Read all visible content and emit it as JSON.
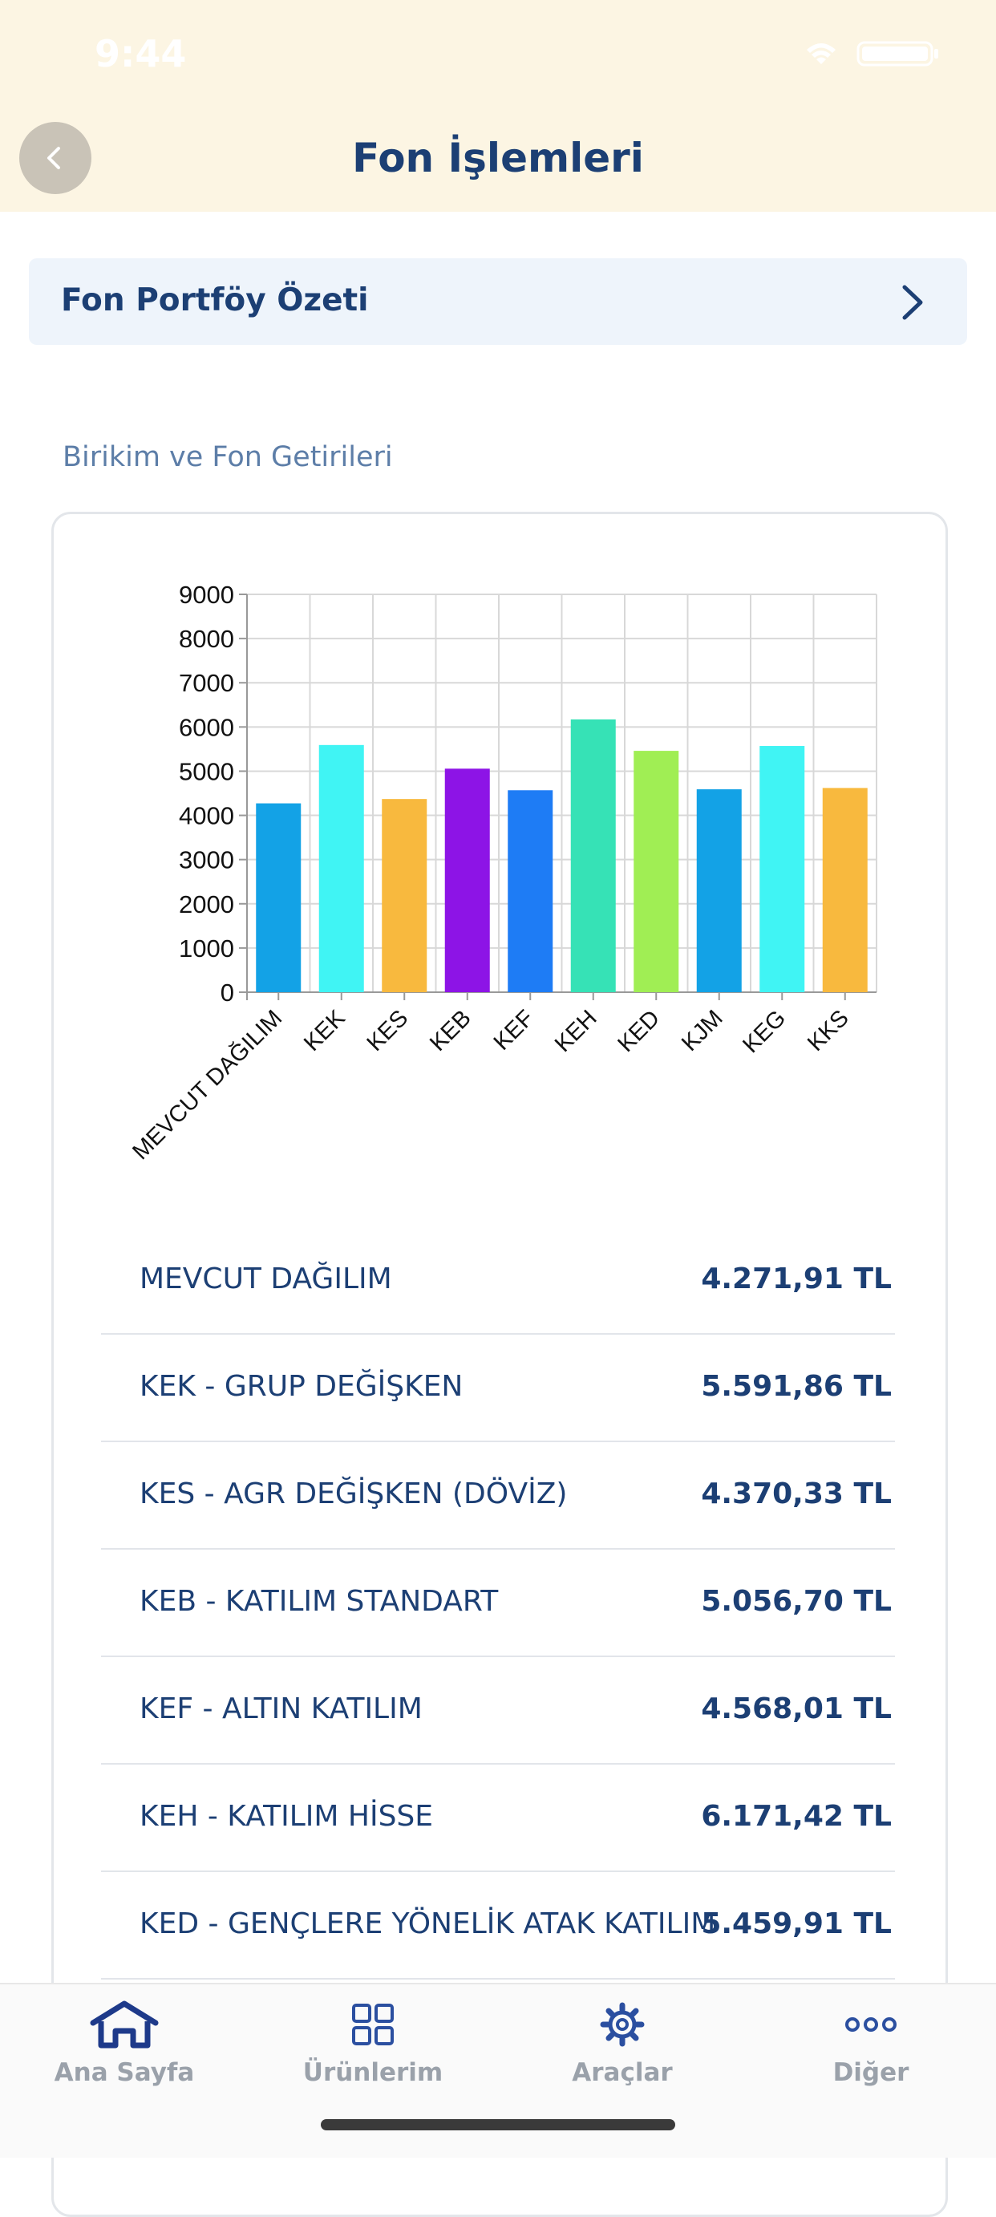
{
  "status_bar": {
    "time": "9:44"
  },
  "header": {
    "title": "Fon İşlemleri"
  },
  "summary": {
    "label": "Fon Portföy Özeti"
  },
  "section": {
    "title": "Birikim ve Fon Getirileri"
  },
  "chart_data": {
    "type": "bar",
    "categories": [
      "MEVCUT DAĞILIM",
      "KEK",
      "KES",
      "KEB",
      "KEF",
      "KEH",
      "KED",
      "KJM",
      "KEG",
      "KKS"
    ],
    "values": [
      4271.91,
      5591.86,
      4370.33,
      5056.7,
      4568.01,
      6171.42,
      5459.91,
      4590,
      5570,
      4620
    ],
    "colors": [
      "#13a2e6",
      "#40f4f4",
      "#f8b93e",
      "#8d14e6",
      "#1e7cf5",
      "#36e2b6",
      "#a0ee54",
      "#13a2e6",
      "#40f4f4",
      "#f8b93e"
    ],
    "yticks": [
      "0",
      "1000",
      "2000",
      "3000",
      "4000",
      "5000",
      "6000",
      "7000",
      "8000",
      "9000"
    ],
    "ylim": [
      0,
      9000
    ],
    "grid": true
  },
  "funds": [
    {
      "name": "MEVCUT DAĞILIM",
      "value": "4.271,91 TL"
    },
    {
      "name": "KEK - GRUP DEĞİŞKEN",
      "value": "5.591,86 TL"
    },
    {
      "name": "KES - AGR DEĞİŞKEN (DÖVİZ)",
      "value": "4.370,33 TL"
    },
    {
      "name": "KEB - KATILIM STANDART",
      "value": "5.056,70 TL"
    },
    {
      "name": "KEF - ALTIN KATILIM",
      "value": "4.568,01 TL"
    },
    {
      "name": "KEH - KATILIM HİSSE",
      "value": "6.171,42 TL"
    },
    {
      "name": "KED - GENÇLERE YÖNELİK ATAK KATILIM",
      "value": "5.459,91 TL"
    }
  ],
  "tabs": [
    {
      "label": "Ana Sayfa",
      "icon": "home-icon",
      "active": true
    },
    {
      "label": "Ürünlerim",
      "icon": "grid-icon"
    },
    {
      "label": "Araçlar",
      "icon": "gear-icon"
    },
    {
      "label": "Diğer",
      "icon": "more-icon"
    }
  ],
  "colors": {
    "primary": "#1c3f74",
    "header_bg": "#fcf5e3",
    "card_bg": "#eef4fb",
    "tab_active": "#1e3a8a",
    "tab_inactive": "#9aa1aa"
  }
}
